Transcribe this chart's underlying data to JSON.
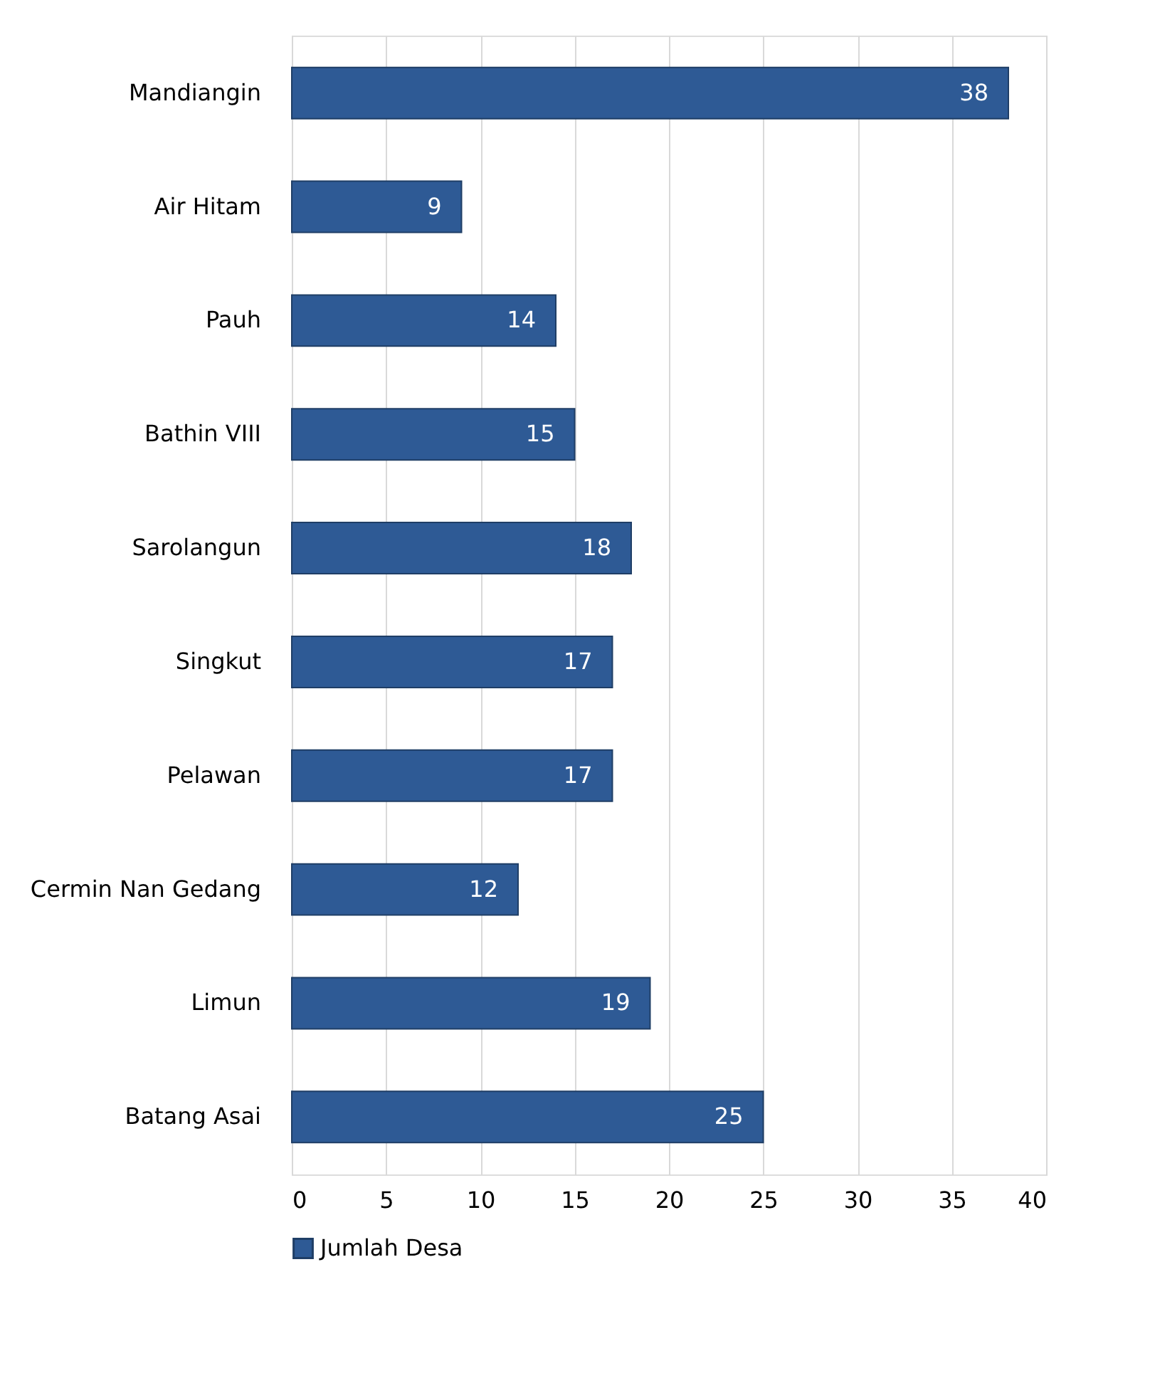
{
  "chart_data": {
    "type": "bar",
    "orientation": "horizontal",
    "categories": [
      "Mandiangin",
      "Air Hitam",
      "Pauh",
      "Bathin VIII",
      "Sarolangun",
      "Singkut",
      "Pelawan",
      "Cermin Nan Gedang",
      "Limun",
      "Batang Asai"
    ],
    "series": [
      {
        "name": "Jumlah Desa",
        "color": "#2e5a95",
        "values": [
          38,
          9,
          14,
          15,
          18,
          17,
          17,
          12,
          19,
          25
        ]
      }
    ],
    "xlim": [
      0,
      40
    ],
    "xticks": [
      0,
      5,
      10,
      15,
      20,
      25,
      30,
      35,
      40
    ],
    "grid": "x",
    "legend": "bottom",
    "data_labels": true
  }
}
